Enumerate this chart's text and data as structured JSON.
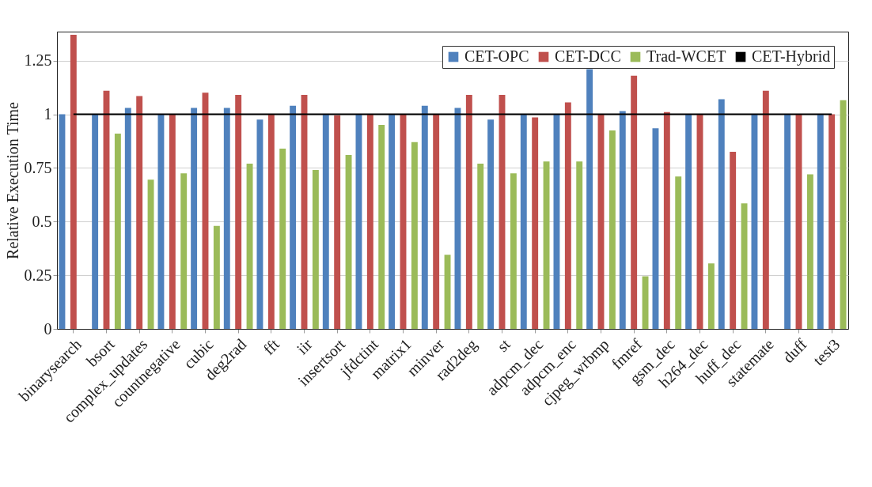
{
  "chart_data": {
    "type": "bar",
    "ylabel": "Relative Execution Time",
    "categories": [
      "binarysearch",
      "bsort",
      "complex_updates",
      "countnegative",
      "cubic",
      "deg2rad",
      "fft",
      "iir",
      "insertsort",
      "jfdctint",
      "matrix1",
      "minver",
      "rad2deg",
      "st",
      "adpcm_dec",
      "adpcm_enc",
      "cjpeg_wrbmp",
      "fmref",
      "gsm_dec",
      "h264_dec",
      "huff_dec",
      "statemate",
      "duff",
      "test3"
    ],
    "series": [
      {
        "name": "CET-OPC",
        "color": "#4f81bd",
        "values": [
          1.0,
          1.0,
          1.03,
          1.0,
          1.03,
          1.03,
          0.975,
          1.04,
          1.0,
          1.0,
          1.0,
          1.04,
          1.03,
          0.975,
          1.0,
          1.0,
          1.21,
          1.015,
          0.935,
          1.0,
          1.07,
          1.0,
          1.0,
          1.0
        ]
      },
      {
        "name": "CET-DCC",
        "color": "#c0504d",
        "values": [
          1.37,
          1.11,
          1.085,
          1.0,
          1.1,
          1.09,
          1.0,
          1.09,
          0.995,
          1.0,
          1.0,
          1.0,
          1.09,
          1.09,
          0.985,
          1.055,
          1.0,
          1.18,
          1.01,
          1.0,
          0.825,
          1.11,
          1.0,
          1.0
        ]
      },
      {
        "name": "Trad-WCET",
        "color": "#9bbb59",
        "values": [
          null,
          0.91,
          0.695,
          0.725,
          0.48,
          0.77,
          0.84,
          0.74,
          0.81,
          0.95,
          0.87,
          0.345,
          0.77,
          0.725,
          0.78,
          0.78,
          0.925,
          0.245,
          0.71,
          0.305,
          0.585,
          null,
          0.72,
          1.065
        ]
      },
      {
        "name": "CET-Hybrid",
        "type": "line",
        "color": "#000000",
        "values": [
          1,
          1,
          1,
          1,
          1,
          1,
          1,
          1,
          1,
          1,
          1,
          1,
          1,
          1,
          1,
          1,
          1,
          1,
          1,
          1,
          1,
          1,
          1,
          1
        ]
      }
    ],
    "ylim": [
      0,
      1.385
    ],
    "yticks": [
      0,
      0.25,
      0.5,
      0.75,
      1,
      1.25
    ],
    "grid": "y",
    "legend": "top right"
  }
}
